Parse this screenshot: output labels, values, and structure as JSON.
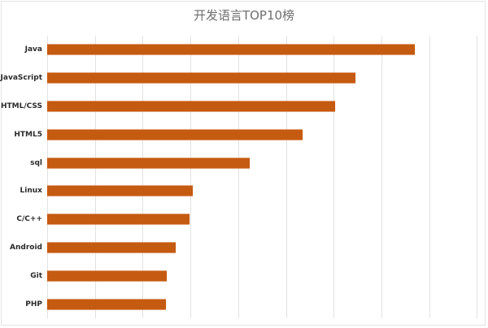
{
  "chart_data": {
    "type": "bar",
    "orientation": "horizontal",
    "title": "开发语言TOP10榜",
    "xlabel": "",
    "ylabel": "",
    "categories": [
      "Java",
      "JavaScript",
      "HTML/CSS",
      "HTML5",
      "sql",
      "Linux",
      "C/C++",
      "Android",
      "Git",
      "PHP"
    ],
    "values": [
      7.7,
      6.46,
      6.03,
      5.35,
      4.24,
      3.05,
      2.98,
      2.69,
      2.5,
      2.49
    ],
    "xlim": [
      0,
      9
    ],
    "x_tick_labels_visible": false,
    "grid": true,
    "gridline_count": 10,
    "legend": null,
    "bar_color": "#C55A11"
  },
  "colors": {
    "bar": "#C55A11",
    "grid": "#e2e2e2",
    "title": "#6f6f6f"
  }
}
